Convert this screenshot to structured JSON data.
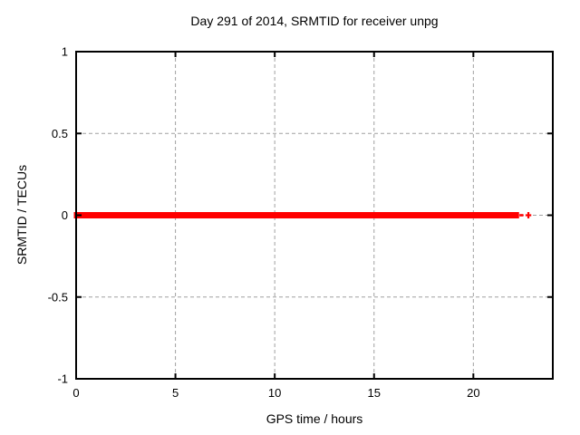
{
  "colors": {
    "background": "#ffffff",
    "text": "#000000",
    "border": "#000000",
    "grid": "#a0a0a0",
    "marker": "#ff0000"
  },
  "chart_data": {
    "type": "scatter",
    "marker": "plus",
    "marker_color": "#ff0000",
    "title": "Day 291 of 2014, SRMTID for receiver unpg",
    "xlabel": "GPS time / hours",
    "ylabel": "SRMTID / TECUs",
    "xlim": [
      0,
      24
    ],
    "ylim": [
      -1,
      1
    ],
    "xticks": [
      0,
      5,
      10,
      15,
      20
    ],
    "xtick_labels": [
      "0",
      "5",
      "10",
      "15",
      "20"
    ],
    "yticks": [
      1,
      0.5,
      0,
      -0.5,
      -1
    ],
    "ytick_labels": [
      "1",
      "0.5",
      "0",
      "-0.5",
      "-1"
    ],
    "grid": true,
    "legend": "none",
    "series": [
      {
        "y": 0,
        "dense_x_range": [
          0,
          22.3
        ],
        "trailing_points": [
          {
            "x": 22.42,
            "style": "dash"
          },
          {
            "x": 22.77,
            "style": "plus"
          }
        ]
      }
    ]
  }
}
